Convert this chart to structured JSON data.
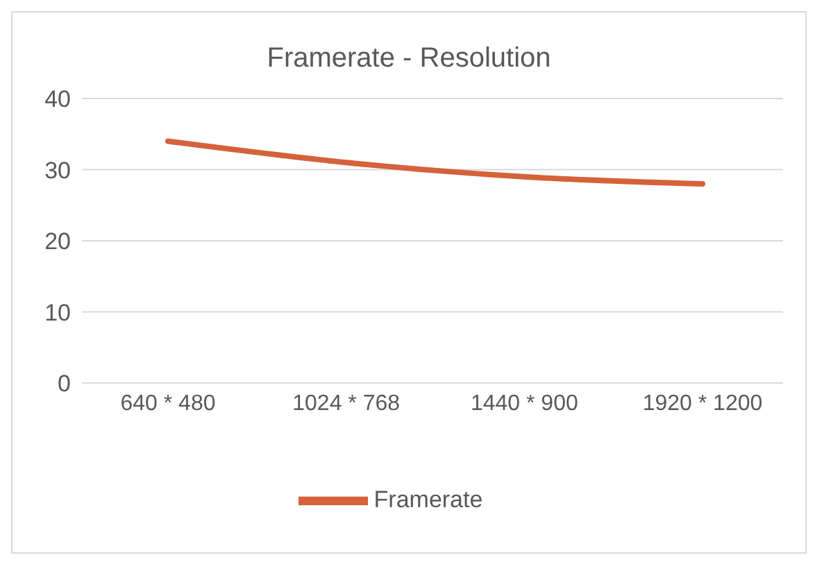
{
  "chart_data": {
    "type": "line",
    "title": "Framerate - Resolution",
    "categories": [
      "640 * 480",
      "1024 * 768",
      "1440 * 900",
      "1920 * 1200"
    ],
    "series": [
      {
        "name": "Framerate",
        "color": "#d5623a",
        "values": [
          34,
          31,
          29,
          28
        ]
      }
    ],
    "ylim": [
      0,
      40
    ],
    "yticks": [
      0,
      10,
      20,
      30,
      40
    ],
    "grid": "y",
    "legend": "bottom",
    "marker": "none",
    "line_style": "solid"
  }
}
